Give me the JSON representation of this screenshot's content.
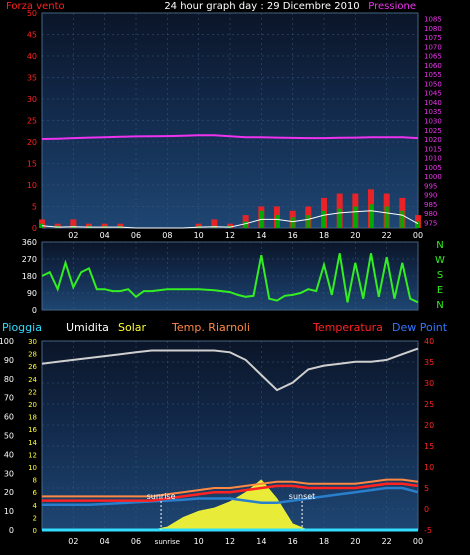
{
  "header": {
    "title": "24 hour graph day : 29 Dicembre 2010",
    "left_label": "Forza vento",
    "right_label": "Pressione"
  },
  "colors": {
    "background": "#000000",
    "plot_top": "#1e4068",
    "plot_bottom": "#0c1a30",
    "grid": "#3a5a7a",
    "wind": "#ff2020",
    "wind_avg": "#ffffff",
    "wind_gust_low": "#00aa00",
    "pressure": "#ee33ee",
    "direction": "#33ee22",
    "humidity": "#cfcfcf",
    "solar": "#ffff33",
    "temp_inside": "#ff8844",
    "temperature": "#ff2222",
    "dew_point": "#2a7fcc",
    "rain": "#33ddff",
    "sun_marker": "#ffffff",
    "legend_pioggia": "#33ddff",
    "legend_umidita": "#ffffff",
    "legend_solar": "#ffff33",
    "legend_riarnoli": "#ff8844",
    "legend_temperatura": "#ff2222",
    "legend_dewpoint": "#3377ff",
    "direction_axis_letters": "#33ee22"
  },
  "legend": {
    "pioggia": "Pioggia",
    "umidita": "Umidita",
    "solar": "Solar",
    "temp_riarnoli": "Temp. Riarnoli",
    "temperatura": "Temperatura",
    "dew_point": "Dew Point"
  },
  "x_ticks": [
    "02",
    "04",
    "06",
    "08",
    "10",
    "12",
    "14",
    "16",
    "18",
    "20",
    "22",
    "00"
  ],
  "bottom_x_ticks": [
    "02",
    "04",
    "06",
    "sunrise",
    "10",
    "12",
    "14",
    "16",
    "18",
    "20",
    "22",
    "00"
  ],
  "chart_data": [
    {
      "type": "line",
      "name": "wind-pressure",
      "x_label": "hour",
      "x": [
        0,
        1,
        2,
        3,
        4,
        5,
        6,
        7,
        8,
        9,
        10,
        11,
        12,
        13,
        14,
        15,
        16,
        17,
        18,
        19,
        20,
        21,
        22,
        23,
        24
      ],
      "left_axis": {
        "label": "Forza vento",
        "ylim": [
          0,
          50
        ],
        "ticks": [
          0,
          5,
          10,
          15,
          20,
          25,
          30,
          35,
          40,
          45,
          50
        ]
      },
      "right_axis": {
        "label": "Pressione",
        "ylim": [
          972,
          1088
        ],
        "ticks": [
          975,
          980,
          985,
          990,
          995,
          1000,
          1005,
          1010,
          1015,
          1020,
          1025,
          1030,
          1035,
          1040,
          1045,
          1050,
          1055,
          1060,
          1065,
          1070,
          1075,
          1080,
          1085
        ]
      },
      "series": [
        {
          "name": "Pressione",
          "axis": "right",
          "values": [
            1020,
            1020.2,
            1020.5,
            1020.8,
            1021,
            1021.2,
            1021.4,
            1021.5,
            1021.6,
            1021.8,
            1022,
            1022,
            1021.5,
            1021,
            1021,
            1020.8,
            1020.6,
            1020.5,
            1020.5,
            1020.7,
            1020.8,
            1021,
            1021,
            1021,
            1020.5
          ]
        },
        {
          "values": [
            2,
            1,
            2,
            1,
            1,
            1,
            0,
            0,
            0,
            0,
            1,
            2,
            1,
            3,
            5,
            5,
            4,
            5,
            7,
            8,
            8,
            9,
            8,
            7,
            3
          ]
        },
        {
          "values": [
            0.5,
            0.2,
            0.3,
            0.2,
            0.2,
            0.2,
            0,
            0,
            0,
            0,
            0.2,
            0.3,
            0.2,
            1,
            2,
            2,
            1.5,
            2,
            3,
            3.5,
            3.8,
            4,
            3.5,
            3,
            1
          ]
        },
        {
          "values": [
            1,
            0.5,
            0.5,
            0.5,
            0.5,
            0.5,
            0,
            0,
            0,
            0,
            0.5,
            0.5,
            0.5,
            1.5,
            4,
            3,
            2.5,
            3,
            4,
            4.5,
            5,
            5.5,
            5,
            4,
            1.5
          ]
        }
      ]
    },
    {
      "type": "line",
      "name": "wind-direction",
      "x": [
        0,
        0.5,
        1,
        1.5,
        2,
        2.5,
        3,
        3.5,
        4,
        4.5,
        5,
        5.5,
        6,
        6.5,
        7,
        8,
        9,
        10,
        11,
        12,
        12.5,
        13,
        13.5,
        14,
        14.5,
        15,
        15.5,
        16,
        16.5,
        17,
        17.5,
        18,
        18.5,
        19,
        19.5,
        20,
        20.5,
        21,
        21.5,
        22,
        22.5,
        23,
        23.5,
        24
      ],
      "ylim": [
        0,
        360
      ],
      "yticks": [
        0,
        90,
        180,
        270,
        360
      ],
      "right_letters": [
        "N",
        "W",
        "S",
        "E",
        "N"
      ],
      "series": [
        {
          "name": "Direzione",
          "values": [
            180,
            200,
            110,
            250,
            120,
            200,
            220,
            110,
            110,
            100,
            100,
            110,
            70,
            100,
            100,
            110,
            110,
            110,
            105,
            95,
            80,
            70,
            75,
            290,
            60,
            50,
            75,
            80,
            90,
            110,
            100,
            240,
            80,
            300,
            40,
            250,
            60,
            300,
            70,
            280,
            60,
            250,
            60,
            40
          ]
        }
      ]
    },
    {
      "type": "line",
      "name": "weather",
      "x": [
        0,
        1,
        2,
        3,
        4,
        5,
        6,
        7,
        8,
        9,
        10,
        11,
        12,
        13,
        14,
        15,
        16,
        17,
        18,
        19,
        20,
        21,
        22,
        23,
        24
      ],
      "left_axis_rain": {
        "label": "Pioggia",
        "ylim": [
          0,
          100
        ],
        "ticks": [
          0,
          10,
          20,
          30,
          40,
          50,
          60,
          70,
          80,
          90,
          100
        ]
      },
      "left_axis_solar": {
        "label": "Solar",
        "ylim": [
          0,
          30
        ],
        "ticks": [
          0,
          2,
          4,
          6,
          8,
          10,
          12,
          14,
          16,
          18,
          20,
          22,
          24,
          26,
          28,
          30
        ]
      },
      "right_axis": {
        "label": "Temperatura",
        "ylim": [
          -5,
          40
        ],
        "ticks": [
          -5,
          0,
          5,
          10,
          15,
          20,
          25,
          30,
          35,
          40
        ]
      },
      "sunrise_hour": 7.6,
      "sunset_hour": 16.6,
      "sunrise_label": "sunrise",
      "sunset_label": "sunset",
      "series": [
        {
          "name": "Umidita",
          "axis": "rain",
          "values": [
            88,
            89,
            90,
            91,
            92,
            93,
            94,
            95,
            95,
            95,
            95,
            95,
            94,
            90,
            82,
            74,
            78,
            85,
            87,
            88,
            89,
            89,
            90,
            93,
            96
          ]
        },
        {
          "name": "Temperatura",
          "axis": "right",
          "values": [
            2,
            2,
            2,
            2,
            2,
            2,
            2,
            2,
            2.5,
            3,
            3.5,
            4,
            4,
            4.5,
            5,
            5.5,
            5.5,
            5,
            5,
            5,
            5,
            5.5,
            6,
            6,
            5.5
          ]
        },
        {
          "name": "Temp. Riarnoli",
          "axis": "right",
          "values": [
            3,
            3,
            3,
            3,
            3,
            3,
            3,
            3,
            3.5,
            4,
            4.5,
            5,
            5,
            5.5,
            6,
            6.5,
            6.5,
            6,
            6,
            6,
            6,
            6.5,
            7,
            7,
            6.5
          ]
        },
        {
          "name": "Dew Point",
          "axis": "right",
          "values": [
            1,
            1,
            1,
            1,
            1.2,
            1.4,
            1.6,
            1.8,
            2,
            2.2,
            2.5,
            2.5,
            2.5,
            2,
            1.5,
            1.5,
            2,
            2.5,
            3,
            3.5,
            4,
            4.5,
            5,
            5,
            4
          ]
        },
        {
          "name": "Pioggia",
          "axis": "rain",
          "values": [
            0,
            0,
            0,
            0,
            0,
            0,
            0,
            0,
            0,
            0,
            0,
            0,
            0,
            0,
            0,
            0,
            0,
            0,
            0,
            0,
            0,
            0,
            0,
            0,
            0
          ]
        },
        {
          "name": "Solar",
          "axis": "solar",
          "values": [
            0,
            0,
            0,
            0,
            0,
            0,
            0,
            0,
            0.5,
            2,
            3,
            3.5,
            4.5,
            6,
            8,
            5,
            1,
            0,
            0,
            0,
            0,
            0,
            0,
            0,
            0
          ]
        }
      ]
    }
  ]
}
